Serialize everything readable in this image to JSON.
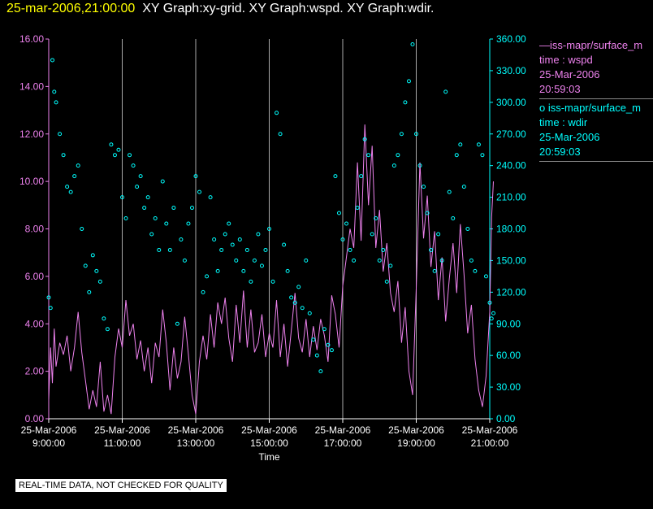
{
  "header": {
    "timestamp": "25-mar-2006,21:00:00",
    "titles": "XY Graph:xy-grid.  XY Graph:wspd.  XY Graph:wdir."
  },
  "legend": [
    {
      "line1": "—iss-mapr/surface_m",
      "line2": "time : wspd",
      "line3": "25-Mar-2006",
      "line4": "20:59:03",
      "color": "#ee82ee"
    },
    {
      "line1": "o  iss-mapr/surface_m",
      "line2": "time : wdir",
      "line3": "25-Mar-2006",
      "line4": "20:59:03",
      "color": "#00ffff"
    }
  ],
  "notice": "REAL-TIME DATA, NOT CHECKED FOR QUALITY",
  "chart_data": {
    "type": "line",
    "xlabel": "Time",
    "x_ticks": [
      {
        "date": "25-Mar-2006",
        "time": "9:00:00",
        "hour": 9
      },
      {
        "date": "25-Mar-2006",
        "time": "11:00:00",
        "hour": 11
      },
      {
        "date": "25-Mar-2006",
        "time": "13:00:00",
        "hour": 13
      },
      {
        "date": "25-Mar-2006",
        "time": "15:00:00",
        "hour": 15
      },
      {
        "date": "25-Mar-2006",
        "time": "17:00:00",
        "hour": 17
      },
      {
        "date": "25-Mar-2006",
        "time": "19:00:00",
        "hour": 19
      },
      {
        "date": "25-Mar-2006",
        "time": "21:00:00",
        "hour": 21
      }
    ],
    "xlim": [
      9,
      21
    ],
    "grid": "vertical",
    "left_axis": {
      "ylim": [
        0,
        16
      ],
      "ticks": [
        "0.00",
        "2.00",
        "4.00",
        "6.00",
        "8.00",
        "10.00",
        "12.00",
        "14.00",
        "16.00"
      ],
      "color": "#ee82ee"
    },
    "right_axis": {
      "ylim": [
        0,
        360
      ],
      "ticks": [
        "0.00",
        "30.00",
        "60.00",
        "90.00",
        "120.00",
        "150.00",
        "180.00",
        "210.00",
        "240.00",
        "270.00",
        "300.00",
        "330.00",
        "360.00"
      ],
      "color": "#00ffff"
    },
    "series": [
      {
        "name": "iss-mapr/surface_m time : wspd",
        "kind": "line",
        "axis": "left",
        "color": "#ee82ee",
        "points": [
          [
            9.0,
            0.8
          ],
          [
            9.05,
            3.0
          ],
          [
            9.1,
            1.5
          ],
          [
            9.15,
            3.8
          ],
          [
            9.2,
            2.2
          ],
          [
            9.3,
            3.2
          ],
          [
            9.4,
            2.7
          ],
          [
            9.5,
            3.5
          ],
          [
            9.6,
            2.0
          ],
          [
            9.7,
            3.0
          ],
          [
            9.8,
            4.5
          ],
          [
            9.9,
            2.8
          ],
          [
            10.0,
            1.6
          ],
          [
            10.1,
            0.4
          ],
          [
            10.2,
            1.2
          ],
          [
            10.3,
            0.5
          ],
          [
            10.4,
            2.4
          ],
          [
            10.5,
            0.3
          ],
          [
            10.6,
            1.0
          ],
          [
            10.7,
            0.2
          ],
          [
            10.8,
            2.6
          ],
          [
            10.9,
            3.8
          ],
          [
            11.0,
            3.0
          ],
          [
            11.1,
            5.0
          ],
          [
            11.2,
            3.5
          ],
          [
            11.3,
            4.0
          ],
          [
            11.4,
            2.5
          ],
          [
            11.5,
            3.3
          ],
          [
            11.6,
            2.0
          ],
          [
            11.7,
            3.0
          ],
          [
            11.8,
            1.5
          ],
          [
            11.9,
            3.2
          ],
          [
            12.0,
            2.6
          ],
          [
            12.1,
            4.6
          ],
          [
            12.2,
            3.2
          ],
          [
            12.3,
            1.2
          ],
          [
            12.4,
            3.0
          ],
          [
            12.5,
            1.7
          ],
          [
            12.6,
            2.4
          ],
          [
            12.7,
            4.3
          ],
          [
            12.8,
            2.7
          ],
          [
            12.9,
            1.0
          ],
          [
            13.0,
            0.2
          ],
          [
            13.1,
            2.4
          ],
          [
            13.2,
            3.5
          ],
          [
            13.3,
            2.5
          ],
          [
            13.4,
            4.4
          ],
          [
            13.5,
            3.0
          ],
          [
            13.6,
            4.9
          ],
          [
            13.7,
            4.0
          ],
          [
            13.8,
            5.1
          ],
          [
            13.9,
            3.4
          ],
          [
            14.0,
            2.4
          ],
          [
            14.1,
            4.8
          ],
          [
            14.2,
            3.2
          ],
          [
            14.3,
            5.4
          ],
          [
            14.4,
            3.0
          ],
          [
            14.5,
            4.6
          ],
          [
            14.6,
            2.8
          ],
          [
            14.7,
            3.2
          ],
          [
            14.8,
            4.4
          ],
          [
            14.9,
            2.6
          ],
          [
            15.0,
            3.6
          ],
          [
            15.1,
            3.0
          ],
          [
            15.2,
            5.0
          ],
          [
            15.3,
            2.6
          ],
          [
            15.4,
            4.0
          ],
          [
            15.5,
            2.2
          ],
          [
            15.6,
            3.7
          ],
          [
            15.7,
            5.3
          ],
          [
            15.8,
            3.4
          ],
          [
            15.9,
            2.8
          ],
          [
            16.0,
            4.2
          ],
          [
            16.1,
            2.6
          ],
          [
            16.2,
            3.9
          ],
          [
            16.3,
            2.9
          ],
          [
            16.4,
            4.2
          ],
          [
            16.5,
            3.5
          ],
          [
            16.6,
            2.4
          ],
          [
            16.7,
            5.2
          ],
          [
            16.8,
            4.4
          ],
          [
            16.9,
            3.0
          ],
          [
            17.0,
            5.6
          ],
          [
            17.1,
            6.8
          ],
          [
            17.2,
            8.0
          ],
          [
            17.3,
            7.2
          ],
          [
            17.4,
            10.8
          ],
          [
            17.5,
            7.5
          ],
          [
            17.6,
            12.4
          ],
          [
            17.7,
            9.0
          ],
          [
            17.8,
            11.5
          ],
          [
            17.9,
            7.2
          ],
          [
            18.0,
            8.8
          ],
          [
            18.1,
            6.2
          ],
          [
            18.2,
            7.4
          ],
          [
            18.3,
            5.3
          ],
          [
            18.4,
            4.5
          ],
          [
            18.5,
            5.8
          ],
          [
            18.6,
            3.2
          ],
          [
            18.7,
            4.7
          ],
          [
            18.8,
            2.0
          ],
          [
            18.9,
            1.0
          ],
          [
            19.0,
            5.5
          ],
          [
            19.1,
            10.8
          ],
          [
            19.2,
            7.6
          ],
          [
            19.3,
            9.4
          ],
          [
            19.4,
            6.4
          ],
          [
            19.5,
            7.9
          ],
          [
            19.6,
            5.0
          ],
          [
            19.7,
            6.8
          ],
          [
            19.8,
            4.1
          ],
          [
            19.9,
            5.9
          ],
          [
            20.0,
            7.4
          ],
          [
            20.1,
            5.3
          ],
          [
            20.2,
            8.2
          ],
          [
            20.3,
            6.1
          ],
          [
            20.4,
            3.6
          ],
          [
            20.5,
            4.8
          ],
          [
            20.6,
            2.5
          ],
          [
            20.7,
            1.2
          ],
          [
            20.8,
            0.5
          ],
          [
            20.9,
            1.8
          ],
          [
            21.0,
            4.5
          ],
          [
            21.05,
            8.5
          ],
          [
            21.1,
            10.0
          ]
        ]
      },
      {
        "name": "iss-mapr/surface_m time : wdir",
        "kind": "scatter",
        "axis": "right",
        "color": "#00ffff",
        "points": [
          [
            9.0,
            115
          ],
          [
            9.05,
            105
          ],
          [
            9.1,
            340
          ],
          [
            9.15,
            310
          ],
          [
            9.2,
            300
          ],
          [
            9.3,
            270
          ],
          [
            9.4,
            250
          ],
          [
            9.5,
            220
          ],
          [
            9.6,
            215
          ],
          [
            9.7,
            230
          ],
          [
            9.8,
            240
          ],
          [
            9.9,
            180
          ],
          [
            10.0,
            145
          ],
          [
            10.1,
            120
          ],
          [
            10.2,
            155
          ],
          [
            10.3,
            140
          ],
          [
            10.4,
            130
          ],
          [
            10.5,
            95
          ],
          [
            10.6,
            85
          ],
          [
            10.7,
            260
          ],
          [
            10.8,
            250
          ],
          [
            10.9,
            255
          ],
          [
            11.0,
            210
          ],
          [
            11.1,
            190
          ],
          [
            11.2,
            250
          ],
          [
            11.3,
            240
          ],
          [
            11.4,
            220
          ],
          [
            11.5,
            230
          ],
          [
            11.6,
            200
          ],
          [
            11.7,
            210
          ],
          [
            11.8,
            175
          ],
          [
            11.9,
            190
          ],
          [
            12.0,
            160
          ],
          [
            12.1,
            225
          ],
          [
            12.2,
            185
          ],
          [
            12.3,
            160
          ],
          [
            12.4,
            200
          ],
          [
            12.5,
            90
          ],
          [
            12.6,
            170
          ],
          [
            12.7,
            150
          ],
          [
            12.8,
            185
          ],
          [
            12.9,
            200
          ],
          [
            13.0,
            230
          ],
          [
            13.1,
            215
          ],
          [
            13.2,
            120
          ],
          [
            13.3,
            135
          ],
          [
            13.4,
            210
          ],
          [
            13.5,
            170
          ],
          [
            13.6,
            140
          ],
          [
            13.7,
            160
          ],
          [
            13.8,
            175
          ],
          [
            13.9,
            185
          ],
          [
            14.0,
            165
          ],
          [
            14.1,
            150
          ],
          [
            14.2,
            170
          ],
          [
            14.3,
            140
          ],
          [
            14.4,
            160
          ],
          [
            14.5,
            130
          ],
          [
            14.6,
            150
          ],
          [
            14.7,
            175
          ],
          [
            14.8,
            145
          ],
          [
            14.9,
            160
          ],
          [
            15.0,
            180
          ],
          [
            15.1,
            130
          ],
          [
            15.2,
            290
          ],
          [
            15.3,
            270
          ],
          [
            15.4,
            165
          ],
          [
            15.5,
            140
          ],
          [
            15.6,
            115
          ],
          [
            15.7,
            110
          ],
          [
            15.8,
            125
          ],
          [
            15.9,
            105
          ],
          [
            16.0,
            150
          ],
          [
            16.1,
            100
          ],
          [
            16.2,
            75
          ],
          [
            16.3,
            60
          ],
          [
            16.4,
            45
          ],
          [
            16.5,
            85
          ],
          [
            16.6,
            70
          ],
          [
            16.7,
            65
          ],
          [
            16.8,
            230
          ],
          [
            16.9,
            195
          ],
          [
            17.0,
            170
          ],
          [
            17.1,
            185
          ],
          [
            17.2,
            160
          ],
          [
            17.3,
            150
          ],
          [
            17.4,
            200
          ],
          [
            17.5,
            230
          ],
          [
            17.6,
            265
          ],
          [
            17.7,
            250
          ],
          [
            17.8,
            175
          ],
          [
            17.9,
            190
          ],
          [
            18.0,
            150
          ],
          [
            18.1,
            160
          ],
          [
            18.2,
            130
          ],
          [
            18.3,
            145
          ],
          [
            18.4,
            240
          ],
          [
            18.5,
            250
          ],
          [
            18.6,
            270
          ],
          [
            18.7,
            300
          ],
          [
            18.8,
            320
          ],
          [
            18.9,
            355
          ],
          [
            19.0,
            270
          ],
          [
            19.1,
            240
          ],
          [
            19.2,
            220
          ],
          [
            19.3,
            195
          ],
          [
            19.4,
            160
          ],
          [
            19.5,
            140
          ],
          [
            19.6,
            175
          ],
          [
            19.7,
            150
          ],
          [
            19.8,
            310
          ],
          [
            19.9,
            215
          ],
          [
            20.0,
            190
          ],
          [
            20.1,
            250
          ],
          [
            20.2,
            260
          ],
          [
            20.3,
            220
          ],
          [
            20.4,
            180
          ],
          [
            20.5,
            150
          ],
          [
            20.6,
            140
          ],
          [
            20.7,
            260
          ],
          [
            20.8,
            250
          ],
          [
            20.9,
            135
          ],
          [
            21.0,
            110
          ],
          [
            21.05,
            95
          ],
          [
            21.1,
            100
          ]
        ]
      }
    ]
  }
}
